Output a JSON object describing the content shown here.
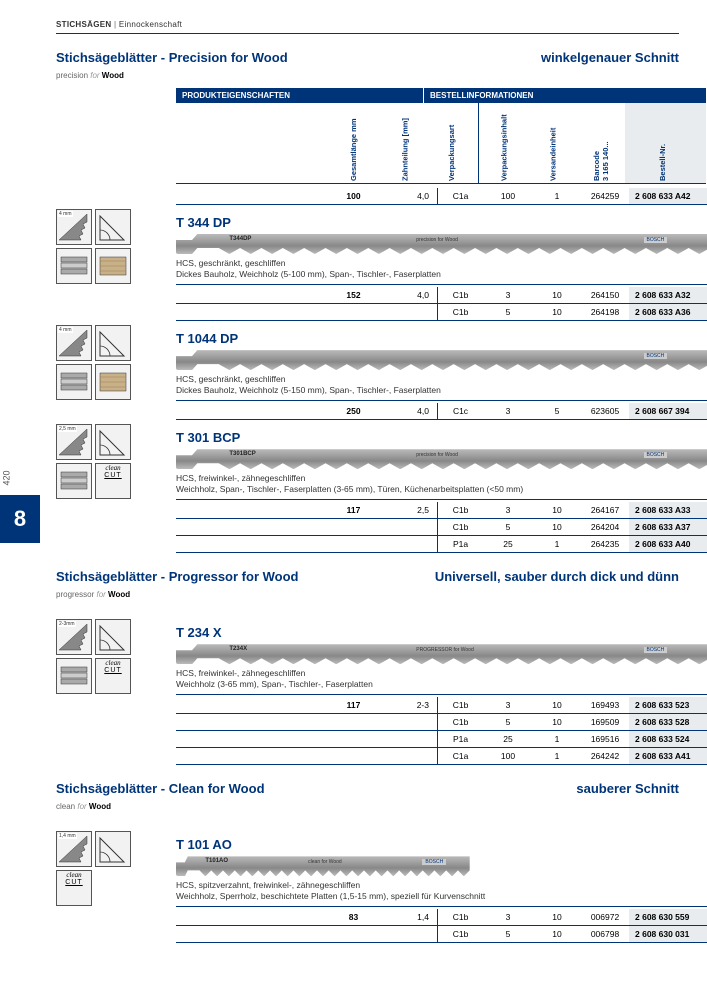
{
  "breadcrumb": {
    "main": "STICHSÄGEN",
    "sub": "Einnockenschaft"
  },
  "side": {
    "page": "420",
    "section": "8"
  },
  "colhead": {
    "prod": "PRODUKTEIGENSCHAFTEN",
    "best": "BESTELLINFORMATIONEN",
    "len": "Gesamtlänge mm",
    "zahn": "Zahnteilung [mm]",
    "vart": "Verpackungsart",
    "vinh": "Verpackungsinhalt",
    "veinh": "Versandeinheit",
    "bar": "Barcode\n3 165 140...",
    "bestnr": "Bestell-Nr."
  },
  "sections": [
    {
      "title": "Stichsägeblätter - Precision for Wood",
      "tag": "winkelgenauer Schnitt",
      "logo_pre": "precision",
      "logo_b": "Wood",
      "leadrows": [
        {
          "len": "100",
          "zahn": "4,0",
          "vart": "C1a",
          "vinh": "100",
          "veinh": "1",
          "bar": "264259",
          "best": "2 608 633 A42"
        }
      ],
      "products": [
        {
          "code": "T 344 DP",
          "blade": "T344DP",
          "bladetag": "precision for Wood",
          "icons": [
            {
              "lbl": "4 mm",
              "t": "saw"
            },
            {
              "lbl": "",
              "t": "angle"
            },
            {
              "lbl": "",
              "t": "layers"
            },
            {
              "lbl": "",
              "t": "wood"
            }
          ],
          "desc1": "HCS, geschränkt, geschliffen",
          "desc2": "Dickes Bauholz, Weichholz (5-100 mm), Span-, Tischler-, Faserplatten",
          "rows": [
            {
              "len": "152",
              "zahn": "4,0",
              "vart": "C1b",
              "vinh": "3",
              "veinh": "10",
              "bar": "264150",
              "best": "2 608 633 A32"
            },
            {
              "len": "",
              "zahn": "",
              "vart": "C1b",
              "vinh": "5",
              "veinh": "10",
              "bar": "264198",
              "best": "2 608 633 A36"
            }
          ]
        },
        {
          "code": "T 1044 DP",
          "blade": "",
          "bladetag": "",
          "icons": [
            {
              "lbl": "4 mm",
              "t": "saw"
            },
            {
              "lbl": "",
              "t": "angle"
            },
            {
              "lbl": "",
              "t": "layers"
            },
            {
              "lbl": "",
              "t": "wood"
            }
          ],
          "desc1": "HCS, geschränkt, geschliffen",
          "desc2": "Dickes Bauholz, Weichholz (5-150 mm), Span-, Tischler-, Faserplatten",
          "rows": [
            {
              "len": "250",
              "zahn": "4,0",
              "vart": "C1c",
              "vinh": "3",
              "veinh": "5",
              "bar": "623605",
              "best": "2 608 667 394"
            }
          ]
        },
        {
          "code": "T 301 BCP",
          "blade": "T301BCP",
          "bladetag": "precision for Wood",
          "icons": [
            {
              "lbl": "2,5 mm",
              "t": "saw"
            },
            {
              "lbl": "",
              "t": "angle"
            },
            {
              "lbl": "",
              "t": "layers"
            },
            {
              "lbl": "clean",
              "t": "clean"
            }
          ],
          "desc1": "HCS, freiwinkel-, zähnegeschliffen",
          "desc2": "Weichholz, Span-, Tischler-, Faserplatten (3-65 mm), Türen, Küchenarbeitsplatten (<50 mm)",
          "rows": [
            {
              "len": "117",
              "zahn": "2,5",
              "vart": "C1b",
              "vinh": "3",
              "veinh": "10",
              "bar": "264167",
              "best": "2 608 633 A33"
            },
            {
              "len": "",
              "zahn": "",
              "vart": "C1b",
              "vinh": "5",
              "veinh": "10",
              "bar": "264204",
              "best": "2 608 633 A37"
            },
            {
              "len": "",
              "zahn": "",
              "vart": "P1a",
              "vinh": "25",
              "veinh": "1",
              "bar": "264235",
              "best": "2 608 633 A40"
            }
          ]
        }
      ]
    },
    {
      "title": "Stichsägeblätter - Progressor for Wood",
      "tag": "Universell, sauber durch dick und dünn",
      "logo_pre": "progressor",
      "logo_b": "Wood",
      "products": [
        {
          "code": "T 234 X",
          "blade": "T234X",
          "bladetag": "PROGRESSOR for Wood",
          "icons": [
            {
              "lbl": "2-3mm",
              "t": "saw"
            },
            {
              "lbl": "",
              "t": "angle"
            },
            {
              "lbl": "",
              "t": "layers"
            },
            {
              "lbl": "clean",
              "t": "clean"
            }
          ],
          "desc1": "HCS, freiwinkel-, zähnegeschliffen",
          "desc2": "Weichholz (3-65 mm), Span-, Tischler-, Faserplatten",
          "rows": [
            {
              "len": "117",
              "zahn": "2-3",
              "vart": "C1b",
              "vinh": "3",
              "veinh": "10",
              "bar": "169493",
              "best": "2 608 633 523"
            },
            {
              "len": "",
              "zahn": "",
              "vart": "C1b",
              "vinh": "5",
              "veinh": "10",
              "bar": "169509",
              "best": "2 608 633 528"
            },
            {
              "len": "",
              "zahn": "",
              "vart": "P1a",
              "vinh": "25",
              "veinh": "1",
              "bar": "169516",
              "best": "2 608 633 524"
            },
            {
              "len": "",
              "zahn": "",
              "vart": "C1a",
              "vinh": "100",
              "veinh": "1",
              "bar": "264242",
              "best": "2 608 633 A41"
            }
          ]
        }
      ]
    },
    {
      "title": "Stichsägeblätter - Clean for Wood",
      "tag": "sauberer Schnitt",
      "logo_pre": "clean",
      "logo_b": "Wood",
      "products": [
        {
          "code": "T 101 AO",
          "blade": "T101AO",
          "bladetag": "clean for Wood",
          "short": true,
          "icons": [
            {
              "lbl": "1,4 mm",
              "t": "saw"
            },
            {
              "lbl": "",
              "t": "angle"
            },
            {
              "lbl": "clean",
              "t": "clean"
            }
          ],
          "desc1": "HCS, spitzverzahnt, freiwinkel-, zähnegeschliffen",
          "desc2": "Weichholz, Sperrholz, beschichtete Platten (1,5-15 mm), speziell für Kurvenschnitt",
          "rows": [
            {
              "len": "83",
              "zahn": "1,4",
              "vart": "C1b",
              "vinh": "3",
              "veinh": "10",
              "bar": "006972",
              "best": "2 608 630 559"
            },
            {
              "len": "",
              "zahn": "",
              "vart": "C1b",
              "vinh": "5",
              "veinh": "10",
              "bar": "006798",
              "best": "2 608 630 031"
            }
          ]
        }
      ]
    }
  ]
}
